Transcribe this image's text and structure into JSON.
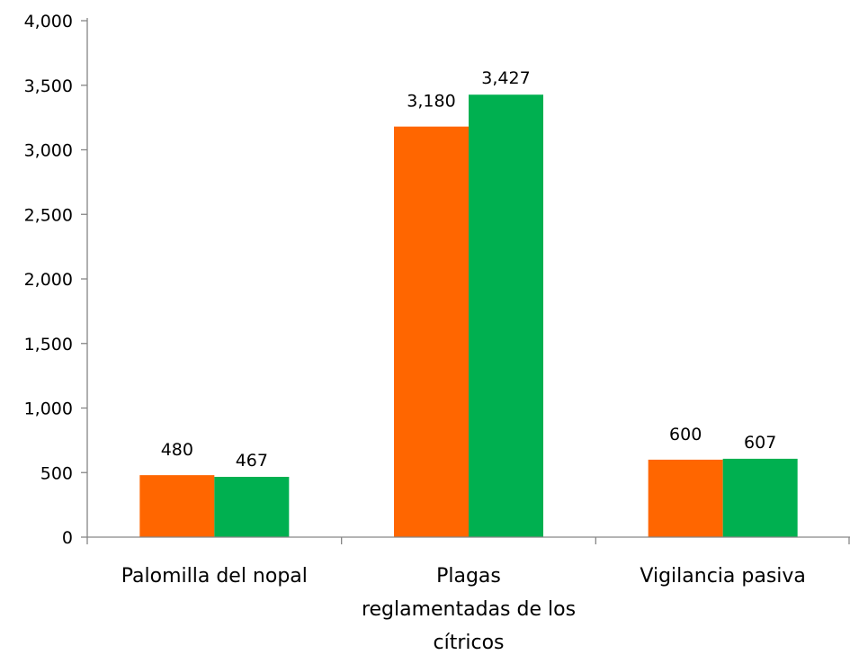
{
  "chart_data": {
    "type": "bar",
    "categories": [
      [
        "Palomilla del nopal"
      ],
      [
        "Plagas",
        "reglamentadas de los",
        "cítricos"
      ],
      [
        "Vigilancia pasiva"
      ]
    ],
    "series": [
      {
        "color": "#FF6600",
        "values": [
          480,
          3180,
          600
        ],
        "labels": [
          "480",
          "3,180",
          "600"
        ]
      },
      {
        "color": "#00B050",
        "values": [
          467,
          3427,
          607
        ],
        "labels": [
          "467",
          "3,427",
          "607"
        ]
      }
    ],
    "y_ticks": [
      0,
      500,
      1000,
      1500,
      2000,
      2500,
      3000,
      3500,
      4000
    ],
    "y_tick_labels": [
      "0",
      "500",
      "1,000",
      "1,500",
      "2,000",
      "2,500",
      "3,000",
      "3,500",
      "4,000"
    ],
    "ylim": [
      0,
      4000
    ],
    "title": "",
    "xlabel": "",
    "ylabel": "",
    "grid": false,
    "legend": "none"
  }
}
